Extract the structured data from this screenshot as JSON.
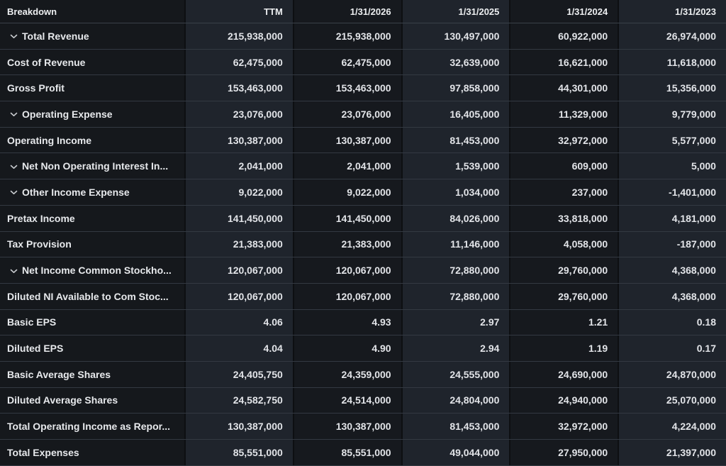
{
  "table": {
    "header": {
      "breakdown_label": "Breakdown",
      "columns": [
        "TTM",
        "1/31/2026",
        "1/31/2025",
        "1/31/2024",
        "1/31/2023"
      ]
    },
    "rows": [
      {
        "label": "Total Revenue",
        "expandable": true,
        "values": [
          "215,938,000",
          "215,938,000",
          "130,497,000",
          "60,922,000",
          "26,974,000"
        ]
      },
      {
        "label": "Cost of Revenue",
        "expandable": false,
        "values": [
          "62,475,000",
          "62,475,000",
          "32,639,000",
          "16,621,000",
          "11,618,000"
        ]
      },
      {
        "label": "Gross Profit",
        "expandable": false,
        "values": [
          "153,463,000",
          "153,463,000",
          "97,858,000",
          "44,301,000",
          "15,356,000"
        ]
      },
      {
        "label": "Operating Expense",
        "expandable": true,
        "values": [
          "23,076,000",
          "23,076,000",
          "16,405,000",
          "11,329,000",
          "9,779,000"
        ]
      },
      {
        "label": "Operating Income",
        "expandable": false,
        "values": [
          "130,387,000",
          "130,387,000",
          "81,453,000",
          "32,972,000",
          "5,577,000"
        ]
      },
      {
        "label": "Net Non Operating Interest In...",
        "expandable": true,
        "values": [
          "2,041,000",
          "2,041,000",
          "1,539,000",
          "609,000",
          "5,000"
        ]
      },
      {
        "label": "Other Income Expense",
        "expandable": true,
        "values": [
          "9,022,000",
          "9,022,000",
          "1,034,000",
          "237,000",
          "-1,401,000"
        ]
      },
      {
        "label": "Pretax Income",
        "expandable": false,
        "values": [
          "141,450,000",
          "141,450,000",
          "84,026,000",
          "33,818,000",
          "4,181,000"
        ]
      },
      {
        "label": "Tax Provision",
        "expandable": false,
        "values": [
          "21,383,000",
          "21,383,000",
          "11,146,000",
          "4,058,000",
          "-187,000"
        ]
      },
      {
        "label": "Net Income Common Stockho...",
        "expandable": true,
        "values": [
          "120,067,000",
          "120,067,000",
          "72,880,000",
          "29,760,000",
          "4,368,000"
        ]
      },
      {
        "label": "Diluted NI Available to Com Stoc...",
        "expandable": false,
        "values": [
          "120,067,000",
          "120,067,000",
          "72,880,000",
          "29,760,000",
          "4,368,000"
        ]
      },
      {
        "label": "Basic EPS",
        "expandable": false,
        "values": [
          "4.06",
          "4.93",
          "2.97",
          "1.21",
          "0.18"
        ]
      },
      {
        "label": "Diluted EPS",
        "expandable": false,
        "values": [
          "4.04",
          "4.90",
          "2.94",
          "1.19",
          "0.17"
        ]
      },
      {
        "label": "Basic Average Shares",
        "expandable": false,
        "values": [
          "24,405,750",
          "24,359,000",
          "24,555,000",
          "24,690,000",
          "24,870,000"
        ]
      },
      {
        "label": "Diluted Average Shares",
        "expandable": false,
        "values": [
          "24,582,750",
          "24,514,000",
          "24,804,000",
          "24,940,000",
          "25,070,000"
        ]
      },
      {
        "label": "Total Operating Income as Repor...",
        "expandable": false,
        "values": [
          "130,387,000",
          "130,387,000",
          "81,453,000",
          "32,972,000",
          "4,224,000"
        ]
      },
      {
        "label": "Total Expenses",
        "expandable": false,
        "values": [
          "85,551,000",
          "85,551,000",
          "49,044,000",
          "27,950,000",
          "21,397,000"
        ]
      }
    ],
    "colors": {
      "column_dark": "#16191e",
      "column_light": "#1f242c",
      "label_column": "#15181c",
      "row_divider": "#333942",
      "column_divider": "#0d0f12",
      "text": "#e4e6e9",
      "chevron": "#c9ccd0"
    },
    "icons": {
      "expand_icon": "chevron-down"
    }
  }
}
